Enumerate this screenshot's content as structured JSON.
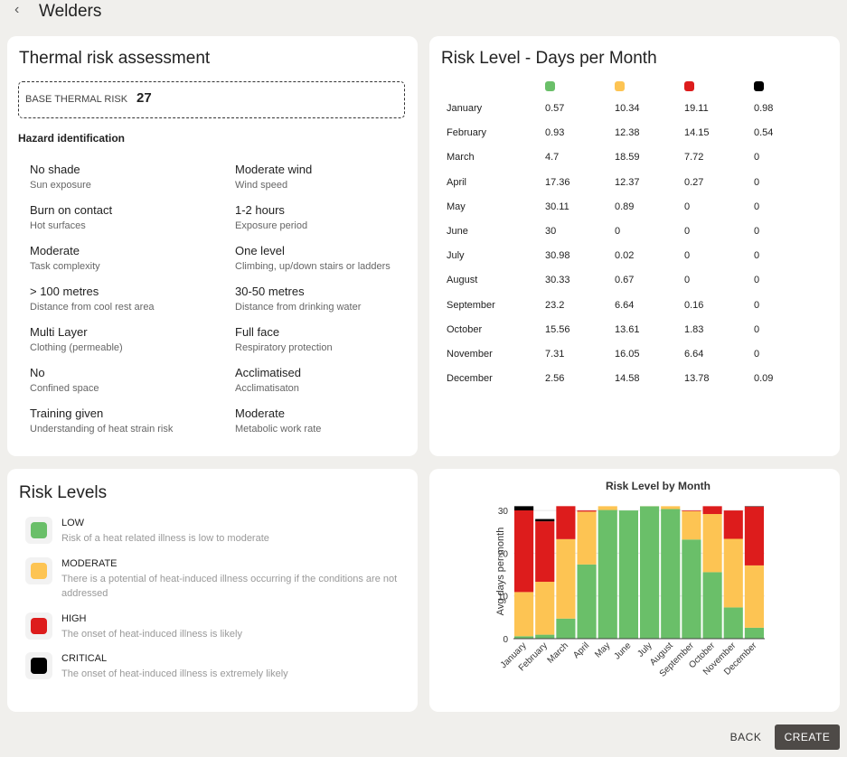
{
  "header": {
    "title": "Welders"
  },
  "assessment": {
    "title": "Thermal risk assessment",
    "base_label": "BASE THERMAL RISK",
    "base_value": 27,
    "hazard_title": "Hazard identification",
    "items": [
      {
        "value": "No shade",
        "label": "Sun exposure"
      },
      {
        "value": "Moderate wind",
        "label": "Wind speed"
      },
      {
        "value": "Burn on contact",
        "label": "Hot surfaces"
      },
      {
        "value": "1-2 hours",
        "label": "Exposure period"
      },
      {
        "value": "Moderate",
        "label": "Task complexity"
      },
      {
        "value": "One level",
        "label": "Climbing, up/down stairs or ladders"
      },
      {
        "value": "> 100 metres",
        "label": "Distance from cool rest area"
      },
      {
        "value": "30-50 metres",
        "label": "Distance from drinking water"
      },
      {
        "value": "Multi Layer",
        "label": "Clothing (permeable)"
      },
      {
        "value": "Full face",
        "label": "Respiratory protection"
      },
      {
        "value": "No",
        "label": "Confined space"
      },
      {
        "value": "Acclimatised",
        "label": "Acclimatisaton"
      },
      {
        "value": "Training given",
        "label": "Understanding of heat strain risk"
      },
      {
        "value": "Moderate",
        "label": "Metabolic work rate"
      }
    ]
  },
  "table": {
    "title": "Risk Level - Days per Month",
    "rows": [
      [
        "January",
        0.57,
        10.34,
        19.11,
        0.98
      ],
      [
        "February",
        0.93,
        12.38,
        14.15,
        0.54
      ],
      [
        "March",
        4.7,
        18.59,
        7.72,
        0
      ],
      [
        "April",
        17.36,
        12.37,
        0.27,
        0
      ],
      [
        "May",
        30.11,
        0.89,
        0,
        0
      ],
      [
        "June",
        30,
        0,
        0,
        0
      ],
      [
        "July",
        30.98,
        0.02,
        0,
        0
      ],
      [
        "August",
        30.33,
        0.67,
        0,
        0
      ],
      [
        "September",
        23.2,
        6.64,
        0.16,
        0
      ],
      [
        "October",
        15.56,
        13.61,
        1.83,
        0
      ],
      [
        "November",
        7.31,
        16.05,
        6.64,
        0
      ],
      [
        "December",
        2.56,
        14.58,
        13.78,
        0.09
      ]
    ]
  },
  "levels": {
    "title": "Risk Levels",
    "items": [
      {
        "name": "LOW",
        "description": "Risk of a heat related illness is low to moderate",
        "color": "#6abf69"
      },
      {
        "name": "MODERATE",
        "description": "There is a potential of heat-induced illness occurring if the conditions are not addressed",
        "color": "#fdc453"
      },
      {
        "name": "HIGH",
        "description": "The onset of heat-induced illness is likely",
        "color": "#dd1c1c"
      },
      {
        "name": "CRITICAL",
        "description": "The onset of heat-induced illness is extremely likely",
        "color": "#000000"
      }
    ]
  },
  "chart_data": {
    "type": "stacked-bar",
    "title": "Risk Level by Month",
    "y_label": "Avg days per month",
    "categories": [
      "January",
      "February",
      "March",
      "April",
      "May",
      "June",
      "July",
      "August",
      "September",
      "October",
      "November",
      "December"
    ],
    "series": [
      {
        "color": "#6abf69",
        "values": [
          0.57,
          0.93,
          4.7,
          17.36,
          30.11,
          30,
          30.98,
          30.33,
          23.2,
          15.56,
          7.31,
          2.56
        ]
      },
      {
        "color": "#fdc453",
        "values": [
          10.34,
          12.38,
          18.59,
          12.37,
          0.89,
          0,
          0.02,
          0.67,
          6.64,
          13.61,
          16.05,
          14.58
        ]
      },
      {
        "color": "#dd1c1c",
        "values": [
          19.11,
          14.15,
          7.72,
          0.27,
          0,
          0,
          0,
          0,
          0.16,
          1.83,
          6.64,
          13.78
        ]
      },
      {
        "color": "#000000",
        "values": [
          0.98,
          0.54,
          0,
          0,
          0,
          0,
          0,
          0,
          0,
          0,
          0,
          0.09
        ]
      }
    ],
    "ylim": [
      0,
      31.5
    ],
    "yticks": [
      0,
      10,
      20,
      30
    ],
    "grid": true
  },
  "buttons": {
    "back": "BACK",
    "create": "CREATE"
  }
}
